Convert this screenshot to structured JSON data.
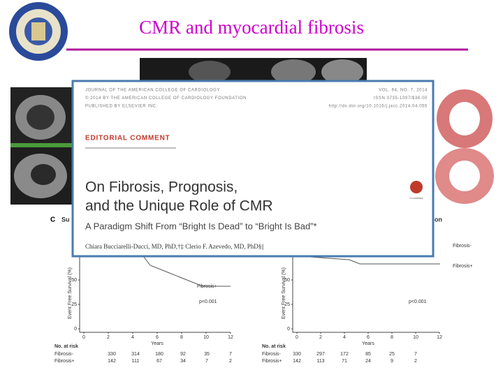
{
  "slide": {
    "title": "CMR and myocardial fibrosis"
  },
  "article": {
    "journal": [
      "JOURNAL OF THE AMERICAN COLLEGE OF CARDIOLOGY",
      "© 2014 BY THE AMERICAN COLLEGE OF CARDIOLOGY FOUNDATION",
      "PUBLISHED BY ELSEVIER INC."
    ],
    "issue": [
      "VOL. 64, NO. 7, 2014",
      "ISSN 0735-1097/$36.00",
      "http://dx.doi.org/10.1016/j.jacc.2014.04.055"
    ],
    "section": "EDITORIAL COMMENT",
    "title_lines": [
      "On Fibrosis, Prognosis,",
      "and the Unique Role of CMR"
    ],
    "subtitle": "A Paradigm Shift From “Bright Is Dead” to “Bright Is Bad”*",
    "authors": "Chiara Bucciarelli-Ducci, MD, PhD,†‡ Clerio F. Azevedo, MD, PhD§||",
    "badge": "CrossMark"
  },
  "panels": [
    {
      "label": "C",
      "heading": "Su",
      "y_axis": "Event Free Survival (%)",
      "yticks": [
        0,
        25,
        50
      ],
      "xticks": [
        0,
        2,
        4,
        6,
        8,
        10,
        12
      ],
      "x_axis": "Years",
      "curve_labels": [
        "Fibrosis+"
      ],
      "p_value": "p<0.001",
      "risk_title": "No. at risk",
      "risk_rows": [
        {
          "name": "Fibrosis-",
          "values": [
            330,
            314,
            180,
            92,
            35,
            7
          ]
        },
        {
          "name": "Fibrosis+",
          "values": [
            142,
            111,
            67,
            34,
            7,
            2
          ]
        }
      ]
    },
    {
      "label": null,
      "heading": "on",
      "y_axis": "Event Free Survival (%)",
      "yticks": [
        0,
        25,
        50
      ],
      "xticks": [
        0,
        2,
        4,
        6,
        8,
        10,
        12
      ],
      "x_axis": "Years",
      "curve_labels": [
        "Fibrosis-",
        "Fibrosis+"
      ],
      "p_value": "p<0.001",
      "risk_title": "No. at risk",
      "risk_rows": [
        {
          "name": "Fibrosis-",
          "values": [
            330,
            297,
            172,
            85,
            25,
            7
          ]
        },
        {
          "name": "Fibrosis+",
          "values": [
            142,
            113,
            71,
            24,
            9,
            2
          ]
        }
      ]
    }
  ]
}
